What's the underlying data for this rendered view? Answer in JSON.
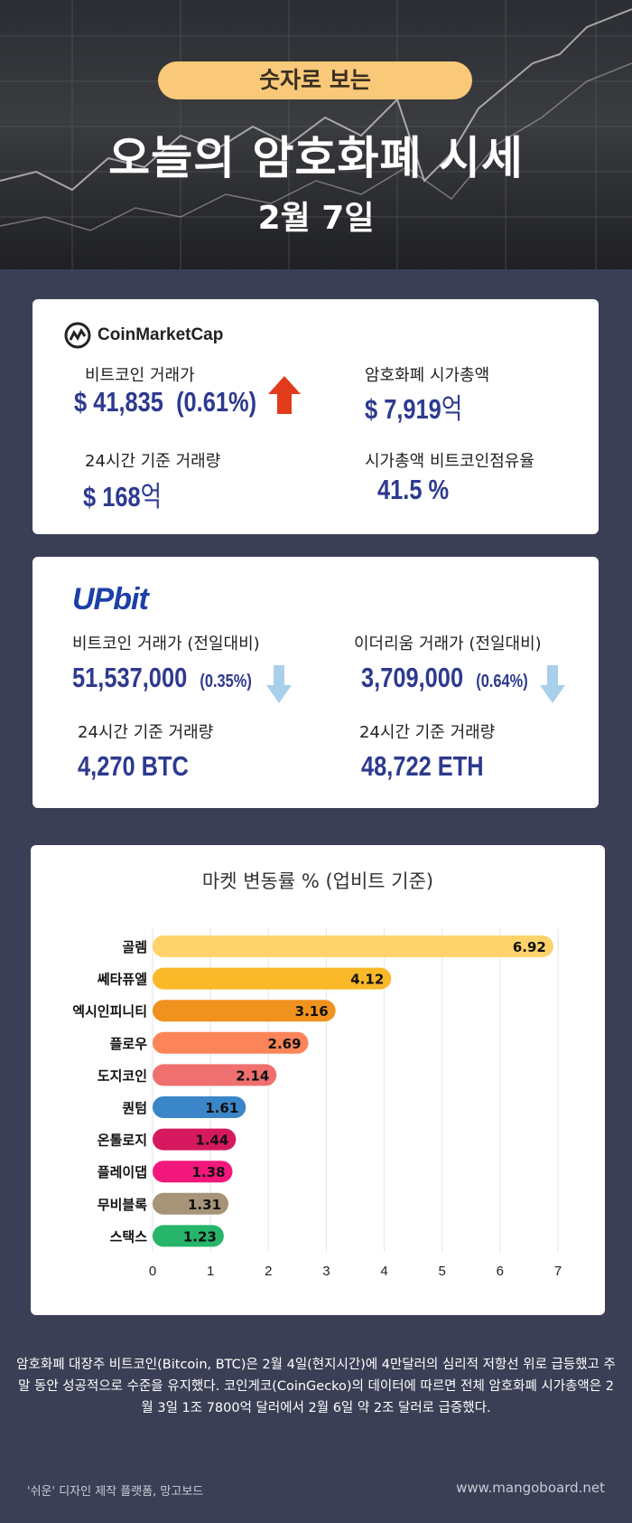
{
  "header": {
    "badge": "숫자로 보는",
    "title": "오늘의 암호화폐 시세",
    "date": "2월 7일"
  },
  "coinmarketcap": {
    "logo_text": "CoinMarketCap",
    "btc_price_label": "비트코인 거래가",
    "btc_price_value": "$ 41,835",
    "btc_price_change": "(0.61%)",
    "btc_trend": "up",
    "market_cap_label": "암호화폐 시가총액",
    "market_cap_value": "$ 7,919",
    "market_cap_unit": "억",
    "volume_label": "24시간 기준 거래량",
    "volume_value": "$ 168",
    "volume_unit": "억",
    "dominance_label": "시가총액 비트코인점유율",
    "dominance_value": "41.5 %",
    "up_color": "#e23b1c"
  },
  "upbit": {
    "logo_text": "UPbit",
    "btc_label": "비트코인 거래가 (전일대비)",
    "btc_value": "51,537,000",
    "btc_change": "(0.35%)",
    "btc_trend": "down",
    "eth_label": "이더리움 거래가 (전일대비)",
    "eth_value": "3,709,000",
    "eth_change": "(0.64%)",
    "eth_trend": "down",
    "btc_volume_label": "24시간 기준 거래량",
    "btc_volume_value": "4,270 BTC",
    "eth_volume_label": "24시간 기준 거래량",
    "eth_volume_value": "48,722 ETH",
    "down_color": "#a9d0ea"
  },
  "chart_data": {
    "type": "bar",
    "orientation": "horizontal",
    "title": "마켓 변동률 % (업비트 기준)",
    "categories": [
      "골렘",
      "쎄타퓨엘",
      "엑시인피니티",
      "플로우",
      "도지코인",
      "퀀텀",
      "온톨로지",
      "플레이댑",
      "무비블록",
      "스택스"
    ],
    "values": [
      6.92,
      4.12,
      3.16,
      2.69,
      2.14,
      1.61,
      1.44,
      1.38,
      1.31,
      1.23
    ],
    "colors": [
      "#fdd36a",
      "#f9b928",
      "#f0921e",
      "#fb8559",
      "#f07070",
      "#3a86c8",
      "#d6195f",
      "#f2187b",
      "#a79378",
      "#27b56b"
    ],
    "xlim": [
      0,
      7
    ],
    "xticks": [
      0,
      1,
      2,
      3,
      4,
      5,
      6,
      7
    ],
    "grid": true
  },
  "description": "암호화폐 대장주 비트코인(Bitcoin, BTC)은 2월 4일(현지시간)에 4만달러의 심리적 저항선 위로 급등했고 주말 동안 성공적으로 수준을 유지했다. 코인게코(CoinGecko)의 데이터에 따르면 전체 암호화폐 시가총액은 2월 3일 1조 7800억 달러에서 2월 6일 약 2조 달러로 급증했다.",
  "footer": {
    "left": "'쉬운' 디자인 제작 플랫폼, 망고보드",
    "right": "www.mangoboard.net"
  }
}
